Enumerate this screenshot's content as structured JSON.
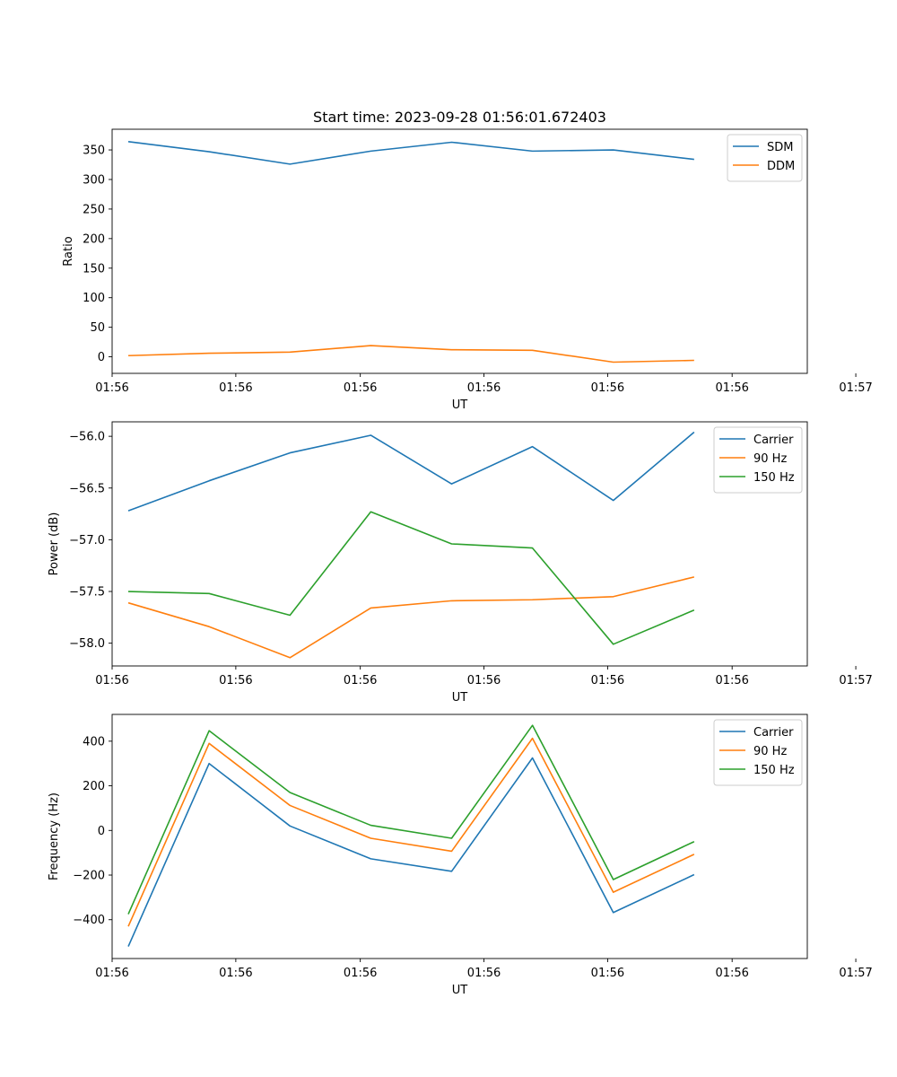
{
  "chart_data": [
    {
      "type": "line",
      "title": "Start time: 2023-09-28 01:56:01.672403",
      "xlabel": "UT",
      "ylabel": "Ratio",
      "x": [
        1,
        2,
        3,
        4,
        5,
        6,
        7,
        8
      ],
      "xlim": [
        0.8,
        9.4
      ],
      "xticks": [
        {
          "v": 0.8,
          "label": "01:56"
        },
        {
          "v": 2.33,
          "label": "01:56"
        },
        {
          "v": 3.87,
          "label": "01:56"
        },
        {
          "v": 5.4,
          "label": "01:56"
        },
        {
          "v": 6.93,
          "label": "01:56"
        },
        {
          "v": 8.47,
          "label": "01:56"
        },
        {
          "v": 10.0,
          "label": "01:57"
        }
      ],
      "ylim": [
        -28,
        385
      ],
      "yticks": [
        {
          "v": 0,
          "label": "0"
        },
        {
          "v": 50,
          "label": "50"
        },
        {
          "v": 100,
          "label": "100"
        },
        {
          "v": 150,
          "label": "150"
        },
        {
          "v": 200,
          "label": "200"
        },
        {
          "v": 250,
          "label": "250"
        },
        {
          "v": 300,
          "label": "300"
        },
        {
          "v": 350,
          "label": "350"
        }
      ],
      "legend_position": "top-right",
      "series": [
        {
          "name": "SDM",
          "color": "#1f77b4",
          "values": [
            364,
            347,
            326,
            348,
            363,
            348,
            350,
            334
          ]
        },
        {
          "name": "DDM",
          "color": "#ff7f0e",
          "values": [
            2,
            6,
            8,
            19,
            12,
            11,
            -9,
            -6
          ]
        }
      ]
    },
    {
      "type": "line",
      "title": "",
      "xlabel": "UT",
      "ylabel": "Power (dB)",
      "x": [
        1,
        2,
        3,
        4,
        5,
        6,
        7,
        8
      ],
      "xlim": [
        0.8,
        9.4
      ],
      "xticks": [
        {
          "v": 0.8,
          "label": "01:56"
        },
        {
          "v": 2.33,
          "label": "01:56"
        },
        {
          "v": 3.87,
          "label": "01:56"
        },
        {
          "v": 5.4,
          "label": "01:56"
        },
        {
          "v": 6.93,
          "label": "01:56"
        },
        {
          "v": 8.47,
          "label": "01:56"
        },
        {
          "v": 10.0,
          "label": "01:57"
        }
      ],
      "ylim": [
        -58.22,
        -55.86
      ],
      "yticks": [
        {
          "v": -58.0,
          "label": "−58.0"
        },
        {
          "v": -57.5,
          "label": "−57.5"
        },
        {
          "v": -57.0,
          "label": "−57.0"
        },
        {
          "v": -56.5,
          "label": "−56.5"
        },
        {
          "v": -56.0,
          "label": "−56.0"
        }
      ],
      "legend_position": "top-right",
      "series": [
        {
          "name": "Carrier",
          "color": "#1f77b4",
          "values": [
            -56.72,
            -56.43,
            -56.16,
            -55.99,
            -56.46,
            -56.1,
            -56.62,
            -55.96
          ]
        },
        {
          "name": "90 Hz",
          "color": "#ff7f0e",
          "values": [
            -57.61,
            -57.84,
            -58.14,
            -57.66,
            -57.59,
            -57.58,
            -57.55,
            -57.36
          ]
        },
        {
          "name": "150 Hz",
          "color": "#2ca02c",
          "values": [
            -57.5,
            -57.52,
            -57.73,
            -56.73,
            -57.04,
            -57.08,
            -58.01,
            -57.68
          ]
        }
      ]
    },
    {
      "type": "line",
      "title": "",
      "xlabel": "UT",
      "ylabel": "Frequency (Hz)",
      "x": [
        1,
        2,
        3,
        4,
        5,
        6,
        7,
        8
      ],
      "xlim": [
        0.8,
        9.4
      ],
      "xticks": [
        {
          "v": 0.8,
          "label": "01:56"
        },
        {
          "v": 2.33,
          "label": "01:56"
        },
        {
          "v": 3.87,
          "label": "01:56"
        },
        {
          "v": 5.4,
          "label": "01:56"
        },
        {
          "v": 6.93,
          "label": "01:56"
        },
        {
          "v": 8.47,
          "label": "01:56"
        },
        {
          "v": 10.0,
          "label": "01:57"
        }
      ],
      "ylim": [
        -574,
        520
      ],
      "yticks": [
        {
          "v": -400,
          "label": "−400"
        },
        {
          "v": -200,
          "label": "−200"
        },
        {
          "v": 0,
          "label": "0"
        },
        {
          "v": 200,
          "label": "200"
        },
        {
          "v": 400,
          "label": "400"
        }
      ],
      "legend_position": "top-right",
      "series": [
        {
          "name": "Carrier",
          "color": "#1f77b4",
          "values": [
            -520,
            300,
            20,
            -127,
            -183,
            325,
            -368,
            -198
          ]
        },
        {
          "name": "90 Hz",
          "color": "#ff7f0e",
          "values": [
            -430,
            390,
            112,
            -35,
            -93,
            413,
            -277,
            -107
          ]
        },
        {
          "name": "150 Hz",
          "color": "#2ca02c",
          "values": [
            -375,
            447,
            170,
            23,
            -35,
            471,
            -220,
            -50
          ]
        }
      ]
    }
  ]
}
